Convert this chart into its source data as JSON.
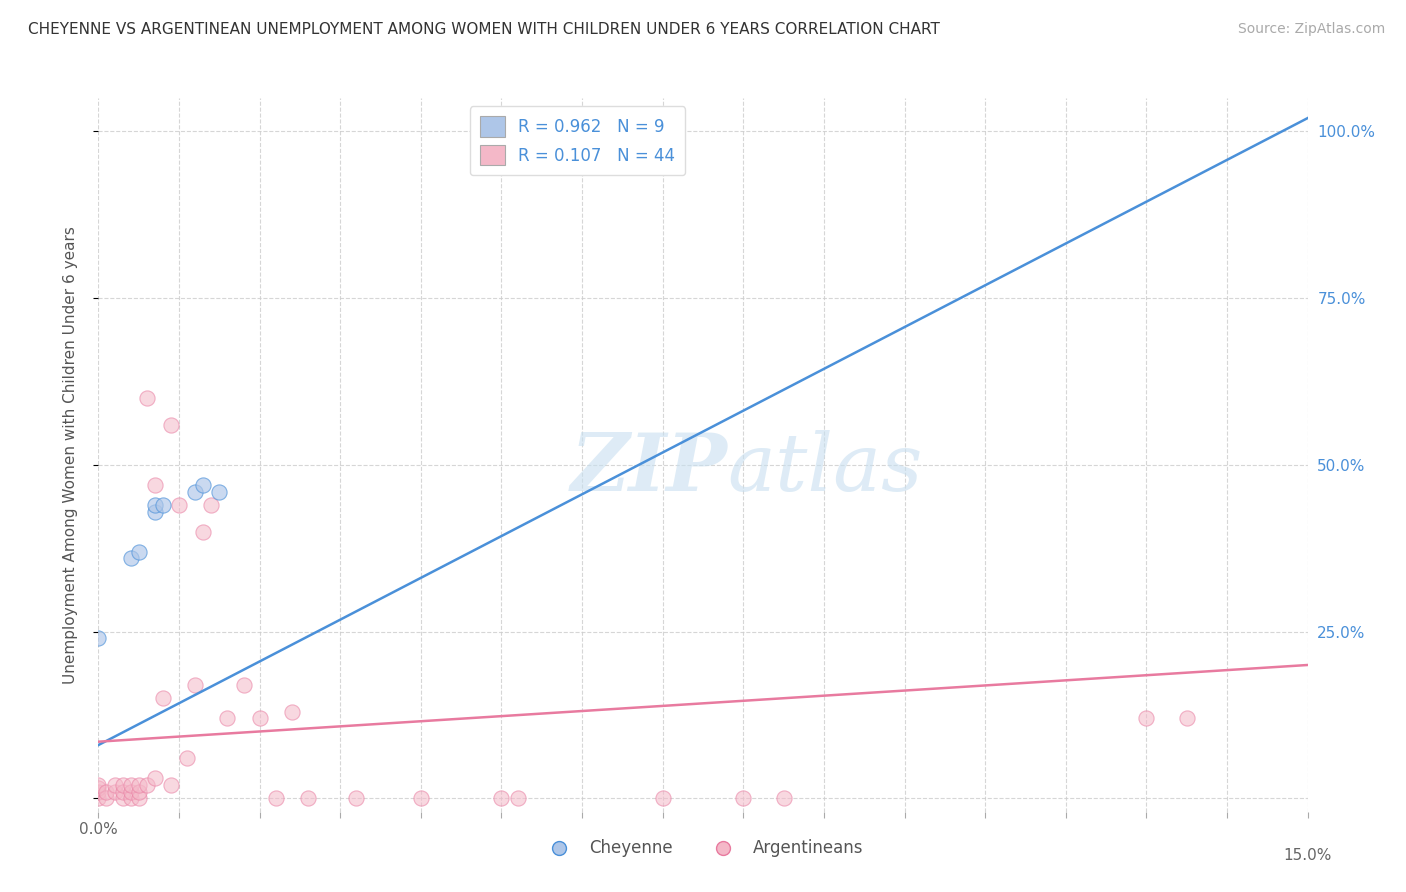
{
  "title": "CHEYENNE VS ARGENTINEAN UNEMPLOYMENT AMONG WOMEN WITH CHILDREN UNDER 6 YEARS CORRELATION CHART",
  "source": "Source: ZipAtlas.com",
  "ylabel": "Unemployment Among Women with Children Under 6 years",
  "xlim": [
    0.0,
    0.15
  ],
  "ylim": [
    -0.02,
    1.05
  ],
  "cheyenne_R": 0.962,
  "cheyenne_N": 9,
  "argentinean_R": 0.107,
  "argentinean_N": 44,
  "cheyenne_color": "#aec6e8",
  "argentinean_color": "#f4b8c8",
  "cheyenne_line_color": "#4a90d9",
  "argentinean_line_color": "#e87a9f",
  "cheyenne_points_x": [
    0.0,
    0.004,
    0.005,
    0.007,
    0.007,
    0.008,
    0.012,
    0.013,
    0.015
  ],
  "cheyenne_points_y": [
    0.24,
    0.36,
    0.37,
    0.43,
    0.44,
    0.44,
    0.46,
    0.47,
    0.46
  ],
  "cheyenne_line_x0": 0.0,
  "cheyenne_line_y0": 0.08,
  "cheyenne_line_x1": 0.15,
  "cheyenne_line_y1": 1.02,
  "argentinean_line_x0": 0.0,
  "argentinean_line_y0": 0.085,
  "argentinean_line_x1": 0.15,
  "argentinean_line_y1": 0.2,
  "argentinean_points_x": [
    0.0,
    0.0,
    0.0,
    0.0,
    0.001,
    0.001,
    0.002,
    0.002,
    0.003,
    0.003,
    0.003,
    0.004,
    0.004,
    0.004,
    0.005,
    0.005,
    0.005,
    0.006,
    0.006,
    0.007,
    0.007,
    0.008,
    0.009,
    0.009,
    0.01,
    0.011,
    0.012,
    0.013,
    0.014,
    0.016,
    0.018,
    0.02,
    0.022,
    0.024,
    0.026,
    0.032,
    0.04,
    0.05,
    0.052,
    0.07,
    0.08,
    0.085,
    0.13,
    0.135
  ],
  "argentinean_points_y": [
    0.0,
    0.01,
    0.015,
    0.02,
    0.0,
    0.01,
    0.01,
    0.02,
    0.0,
    0.01,
    0.02,
    0.0,
    0.01,
    0.02,
    0.0,
    0.01,
    0.02,
    0.02,
    0.6,
    0.03,
    0.47,
    0.15,
    0.02,
    0.56,
    0.44,
    0.06,
    0.17,
    0.4,
    0.44,
    0.12,
    0.17,
    0.12,
    0.0,
    0.13,
    0.0,
    0.0,
    0.0,
    0.0,
    0.0,
    0.0,
    0.0,
    0.0,
    0.12,
    0.12
  ]
}
